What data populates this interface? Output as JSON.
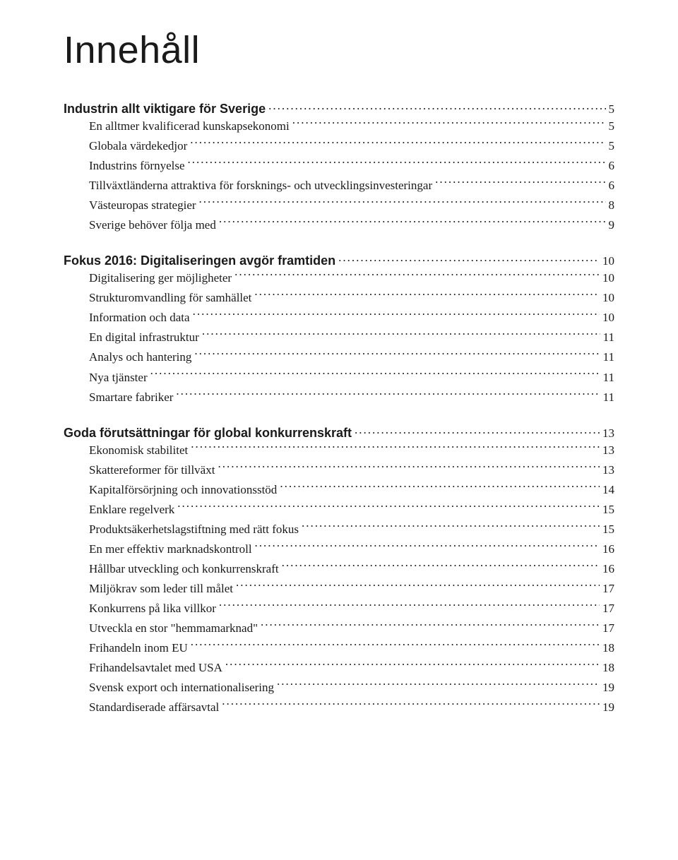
{
  "title": "Innehåll",
  "sections": [
    {
      "heading": "Industrin allt viktigare för Sverige",
      "page": "5",
      "items": [
        {
          "label": "En alltmer kvalificerad kunskapsekonomi",
          "page": "5"
        },
        {
          "label": "Globala värdekedjor",
          "page": "5"
        },
        {
          "label": "Industrins förnyelse",
          "page": "6"
        },
        {
          "label": "Tillväxtländerna attraktiva för forsknings- och utvecklingsinvesteringar",
          "page": "6"
        },
        {
          "label": "Västeuropas strategier",
          "page": "8"
        },
        {
          "label": "Sverige behöver följa med",
          "page": "9"
        }
      ]
    },
    {
      "heading": "Fokus 2016: Digitaliseringen avgör framtiden",
      "page": "10",
      "items": [
        {
          "label": "Digitalisering ger möjligheter",
          "page": "10"
        },
        {
          "label": "Strukturomvandling för samhället",
          "page": "10"
        },
        {
          "label": "Information och data",
          "page": "10"
        },
        {
          "label": "En digital infrastruktur",
          "page": "11"
        },
        {
          "label": "Analys och hantering",
          "page": "11"
        },
        {
          "label": "Nya tjänster",
          "page": "11"
        },
        {
          "label": "Smartare fabriker",
          "page": "11"
        }
      ]
    },
    {
      "heading": "Goda förutsättningar för global konkurrenskraft",
      "page": "13",
      "items": [
        {
          "label": "Ekonomisk stabilitet",
          "page": "13"
        },
        {
          "label": "Skattereformer för tillväxt",
          "page": "13"
        },
        {
          "label": "Kapitalförsörjning och innovationsstöd",
          "page": "14"
        },
        {
          "label": "Enklare regelverk",
          "page": "15"
        },
        {
          "label": "Produktsäkerhetslagstiftning med rätt fokus",
          "page": "15"
        },
        {
          "label": "En mer effektiv marknadskontroll",
          "page": "16"
        },
        {
          "label": "Hållbar utveckling och konkurrenskraft",
          "page": "16"
        },
        {
          "label": "Miljökrav som leder till målet",
          "page": "17"
        },
        {
          "label": "Konkurrens på lika villkor",
          "page": "17"
        },
        {
          "label": "Utveckla en stor \"hemmamarknad\"",
          "page": "17"
        },
        {
          "label": "Frihandeln inom EU",
          "page": "18"
        },
        {
          "label": "Frihandelsavtalet med USA",
          "page": "18"
        },
        {
          "label": "Svensk export och internationalisering",
          "page": "19"
        },
        {
          "label": "Standardiserade affärsavtal",
          "page": "19"
        }
      ]
    }
  ]
}
